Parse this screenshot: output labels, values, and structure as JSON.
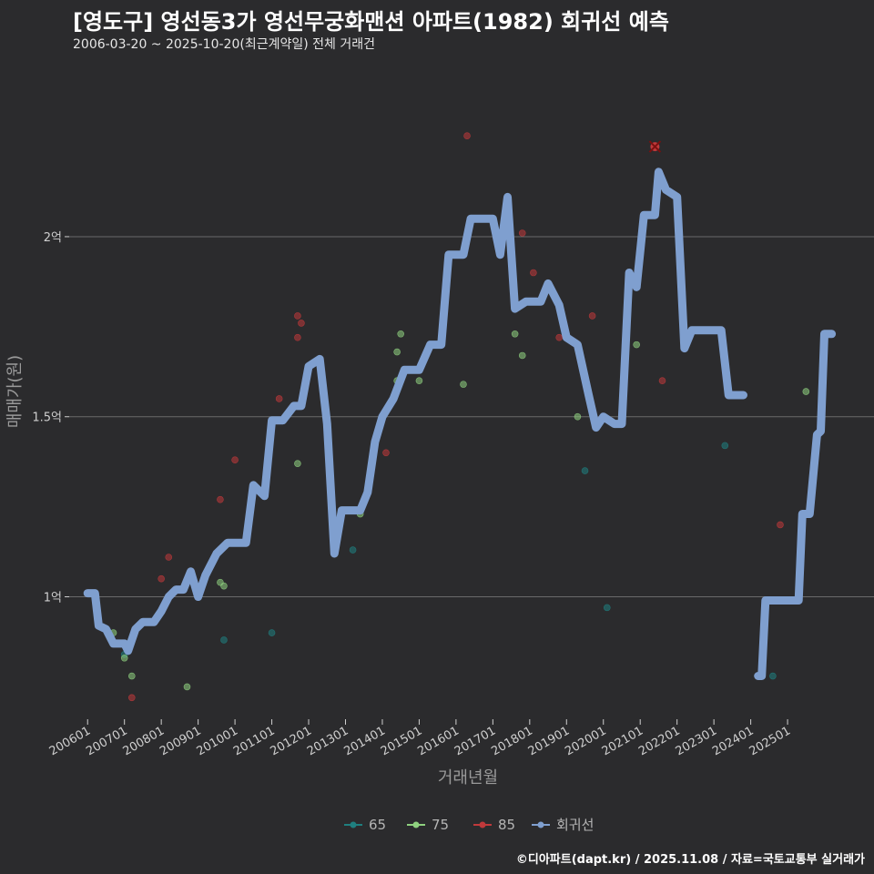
{
  "header": {
    "title": "[영도구] 영선동3가 영선무궁화맨션 아파트(1982) 회귀선 예측",
    "subtitle": "2006-03-20 ~ 2025-10-20(최근계약일) 전체 거래건"
  },
  "caption": "©디아파트(dapt.kr) / 2025.11.08 / 자료=국토교통부 실거래가",
  "colors": {
    "s65": "#1f7f7f",
    "s75": "#8fd17f",
    "s85": "#c0393b",
    "regression": "#7f9fcf"
  },
  "chart_data": {
    "type": "scatter",
    "title": "[영도구] 영선동3가 영선무궁화맨션 아파트(1982) 회귀선 예측",
    "xlabel": "거래년월",
    "ylabel": "매매가(원)",
    "x_range": [
      2005.5,
      2027.0
    ],
    "ylim": [
      0.66,
      2.46
    ],
    "x_ticks": [
      {
        "t": 2006.0,
        "label": "200601"
      },
      {
        "t": 2007.0,
        "label": "200701"
      },
      {
        "t": 2008.0,
        "label": "200801"
      },
      {
        "t": 2009.0,
        "label": "200901"
      },
      {
        "t": 2010.0,
        "label": "201001"
      },
      {
        "t": 2011.0,
        "label": "201101"
      },
      {
        "t": 2012.0,
        "label": "201201"
      },
      {
        "t": 2013.0,
        "label": "201301"
      },
      {
        "t": 2014.0,
        "label": "201401"
      },
      {
        "t": 2015.0,
        "label": "201501"
      },
      {
        "t": 2016.0,
        "label": "201601"
      },
      {
        "t": 2017.0,
        "label": "201701"
      },
      {
        "t": 2018.0,
        "label": "201801"
      },
      {
        "t": 2019.0,
        "label": "201901"
      },
      {
        "t": 2020.0,
        "label": "202001"
      },
      {
        "t": 2021.0,
        "label": "202101"
      },
      {
        "t": 2022.0,
        "label": "202201"
      },
      {
        "t": 2023.0,
        "label": "202301"
      },
      {
        "t": 2024.0,
        "label": "202401"
      },
      {
        "t": 2025.0,
        "label": "202501"
      }
    ],
    "y_ticks": [
      {
        "v": 1.0,
        "label": "1억"
      },
      {
        "v": 1.5,
        "label": "1.5억"
      },
      {
        "v": 2.0,
        "label": "2억"
      }
    ],
    "legend": [
      {
        "key": "s65",
        "label": "65"
      },
      {
        "key": "s75",
        "label": "75"
      },
      {
        "key": "s85",
        "label": "85"
      },
      {
        "key": "regression",
        "label": "회귀선"
      }
    ],
    "series": [
      {
        "name": "65",
        "key": "s65",
        "points": [
          [
            2007.0,
            0.84
          ],
          [
            2009.7,
            0.88
          ],
          [
            2011.0,
            0.9
          ],
          [
            2013.2,
            1.13
          ],
          [
            2019.5,
            1.35
          ],
          [
            2020.1,
            0.97
          ],
          [
            2023.3,
            1.42
          ],
          [
            2024.6,
            0.78
          ]
        ]
      },
      {
        "name": "75",
        "key": "s75",
        "points": [
          [
            2006.7,
            0.9
          ],
          [
            2007.0,
            0.83
          ],
          [
            2007.2,
            0.78
          ],
          [
            2008.7,
            0.75
          ],
          [
            2009.6,
            1.04
          ],
          [
            2009.7,
            1.03
          ],
          [
            2011.7,
            1.37
          ],
          [
            2013.4,
            1.23
          ],
          [
            2014.4,
            1.6
          ],
          [
            2014.4,
            1.68
          ],
          [
            2014.5,
            1.73
          ],
          [
            2015.0,
            1.6
          ],
          [
            2016.2,
            1.59
          ],
          [
            2017.6,
            1.73
          ],
          [
            2017.8,
            1.67
          ],
          [
            2019.3,
            1.5
          ],
          [
            2020.9,
            1.7
          ],
          [
            2025.5,
            1.57
          ]
        ]
      },
      {
        "name": "85",
        "key": "s85",
        "points": [
          [
            2007.2,
            0.72
          ],
          [
            2008.0,
            1.05
          ],
          [
            2008.2,
            1.11
          ],
          [
            2009.6,
            1.27
          ],
          [
            2010.0,
            1.38
          ],
          [
            2011.2,
            1.55
          ],
          [
            2011.7,
            1.78
          ],
          [
            2011.7,
            1.72
          ],
          [
            2011.8,
            1.76
          ],
          [
            2014.1,
            1.4
          ],
          [
            2016.3,
            2.28
          ],
          [
            2017.8,
            2.01
          ],
          [
            2018.1,
            1.9
          ],
          [
            2018.8,
            1.72
          ],
          [
            2019.7,
            1.78
          ],
          [
            2021.4,
            2.25
          ],
          [
            2021.6,
            1.6
          ],
          [
            2024.8,
            1.2
          ]
        ]
      },
      {
        "name": "회귀선",
        "key": "regression",
        "segments": [
          [
            [
              2006.0,
              1.01
            ],
            [
              2006.2,
              1.01
            ],
            [
              2006.3,
              0.92
            ],
            [
              2006.5,
              0.91
            ],
            [
              2006.7,
              0.87
            ],
            [
              2007.0,
              0.87
            ],
            [
              2007.1,
              0.85
            ],
            [
              2007.3,
              0.91
            ],
            [
              2007.5,
              0.93
            ],
            [
              2007.8,
              0.93
            ],
            [
              2008.0,
              0.96
            ],
            [
              2008.2,
              1.0
            ],
            [
              2008.4,
              1.02
            ],
            [
              2008.6,
              1.02
            ],
            [
              2008.8,
              1.07
            ],
            [
              2009.0,
              1.0
            ],
            [
              2009.2,
              1.06
            ],
            [
              2009.5,
              1.12
            ],
            [
              2009.8,
              1.15
            ],
            [
              2010.3,
              1.15
            ],
            [
              2010.5,
              1.31
            ],
            [
              2010.8,
              1.28
            ],
            [
              2011.0,
              1.49
            ],
            [
              2011.3,
              1.49
            ],
            [
              2011.6,
              1.53
            ],
            [
              2011.8,
              1.53
            ],
            [
              2012.0,
              1.64
            ],
            [
              2012.3,
              1.66
            ],
            [
              2012.5,
              1.48
            ],
            [
              2012.7,
              1.12
            ],
            [
              2012.9,
              1.24
            ],
            [
              2013.4,
              1.24
            ],
            [
              2013.6,
              1.29
            ],
            [
              2013.8,
              1.43
            ],
            [
              2014.0,
              1.5
            ],
            [
              2014.3,
              1.55
            ],
            [
              2014.6,
              1.63
            ],
            [
              2015.0,
              1.63
            ],
            [
              2015.3,
              1.7
            ],
            [
              2015.6,
              1.7
            ],
            [
              2015.8,
              1.95
            ],
            [
              2016.2,
              1.95
            ],
            [
              2016.4,
              2.05
            ],
            [
              2017.0,
              2.05
            ],
            [
              2017.2,
              1.95
            ],
            [
              2017.4,
              2.11
            ],
            [
              2017.6,
              1.8
            ],
            [
              2017.9,
              1.82
            ],
            [
              2018.3,
              1.82
            ],
            [
              2018.5,
              1.87
            ],
            [
              2018.8,
              1.81
            ],
            [
              2019.0,
              1.72
            ],
            [
              2019.3,
              1.7
            ],
            [
              2019.6,
              1.56
            ],
            [
              2019.8,
              1.47
            ],
            [
              2020.0,
              1.5
            ],
            [
              2020.3,
              1.48
            ],
            [
              2020.5,
              1.48
            ],
            [
              2020.7,
              1.9
            ],
            [
              2020.9,
              1.86
            ],
            [
              2021.1,
              2.06
            ],
            [
              2021.4,
              2.06
            ],
            [
              2021.5,
              2.18
            ],
            [
              2021.7,
              2.13
            ],
            [
              2022.0,
              2.11
            ],
            [
              2022.2,
              1.69
            ],
            [
              2022.4,
              1.74
            ],
            [
              2023.2,
              1.74
            ],
            [
              2023.4,
              1.56
            ],
            [
              2023.8,
              1.56
            ]
          ],
          [
            [
              2024.2,
              0.78
            ],
            [
              2024.3,
              0.78
            ],
            [
              2024.4,
              0.99
            ],
            [
              2025.3,
              0.99
            ],
            [
              2025.4,
              1.23
            ],
            [
              2025.6,
              1.23
            ],
            [
              2025.8,
              1.45
            ],
            [
              2025.9,
              1.46
            ],
            [
              2026.0,
              1.73
            ],
            [
              2026.2,
              1.73
            ]
          ]
        ]
      }
    ],
    "highlight": {
      "x": 2021.4,
      "y": 2.25,
      "mark": "x"
    }
  }
}
